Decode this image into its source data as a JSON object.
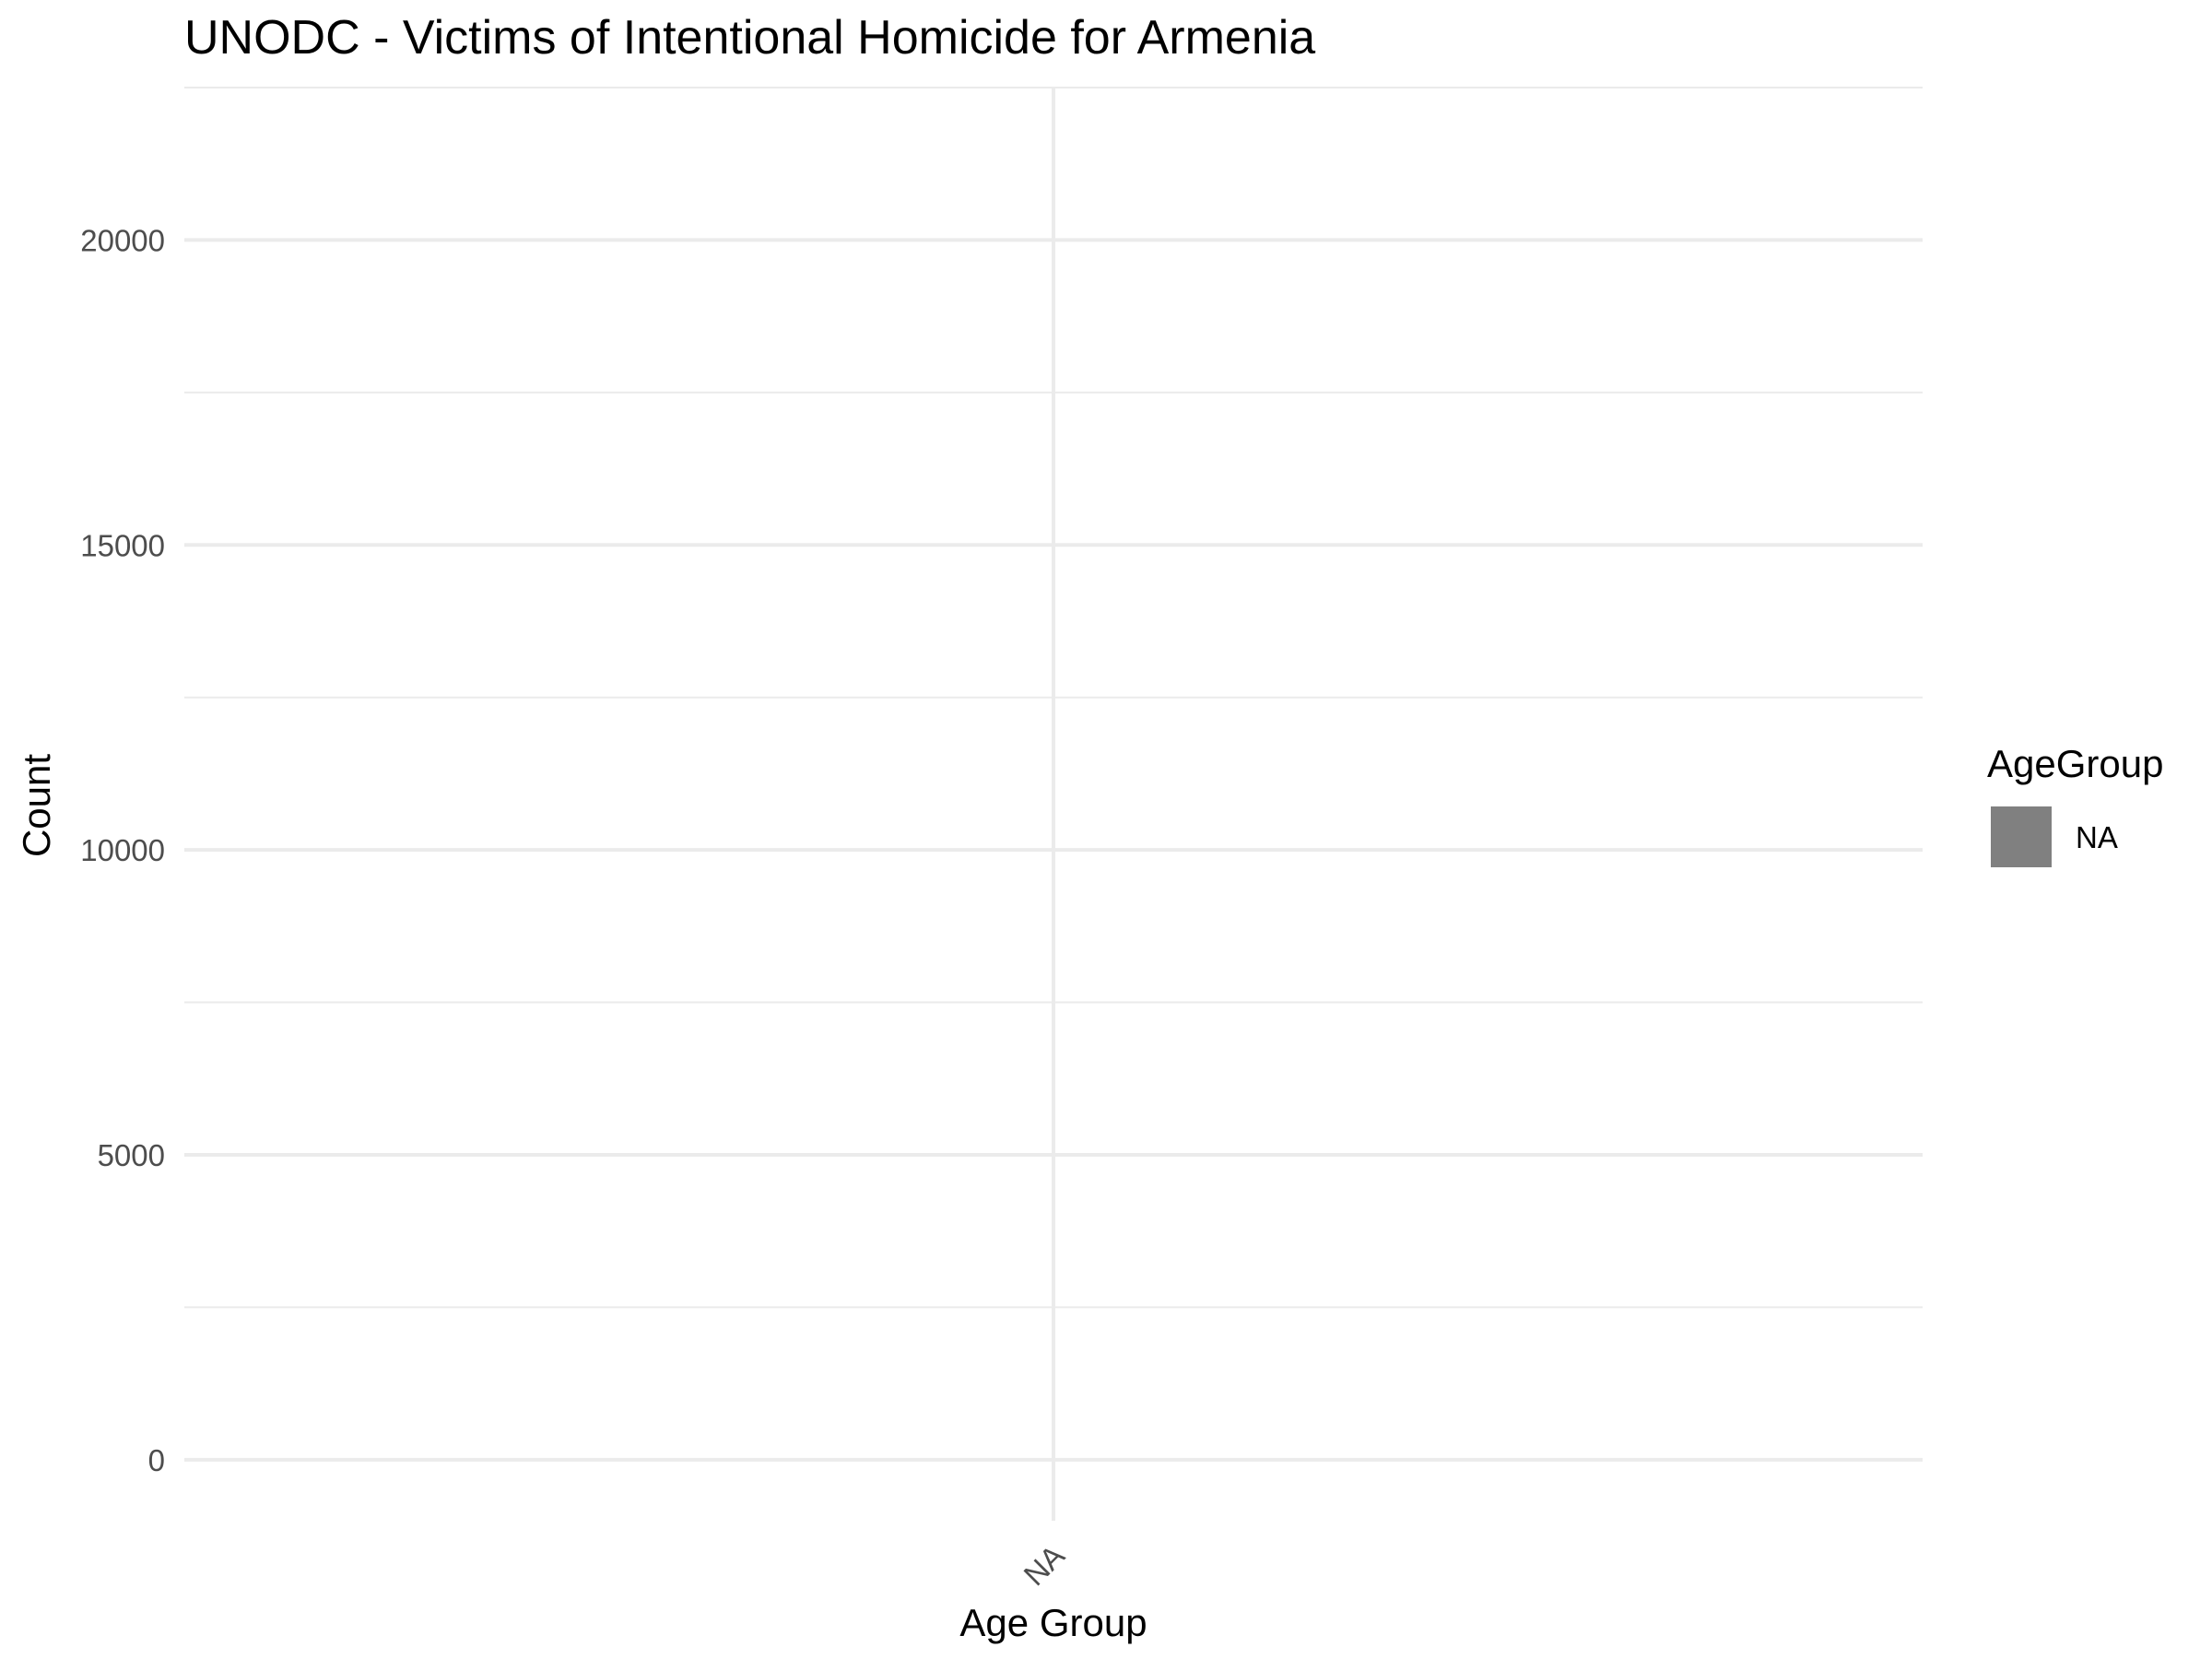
{
  "chart_data": {
    "type": "bar",
    "title": "UNODC - Victims of Intentional Homicide for Armenia",
    "xlabel": "Age Group",
    "ylabel": "Count",
    "categories": [
      "NA"
    ],
    "series": [
      {
        "values": [
          null
        ]
      }
    ],
    "ylim": [
      -1000,
      22500
    ],
    "y_ticks": [
      0,
      5000,
      10000,
      15000,
      20000
    ],
    "y_tick_labels": [
      "0",
      "5000",
      "10000",
      "15000",
      "20000"
    ],
    "y_minor_ticks": [
      2500,
      7500,
      12500,
      17500,
      22500
    ],
    "x_tick_rotation": "45 degrees",
    "grid": true,
    "legend": {
      "title": "AgeGroup",
      "placement": "right",
      "entries": [
        {
          "label": "NA",
          "color": "#808080"
        }
      ]
    },
    "colors": {
      "grid": "#ebebeb",
      "tick_text": "#4d4d4d",
      "text": "#000000",
      "background": "#ffffff"
    }
  }
}
